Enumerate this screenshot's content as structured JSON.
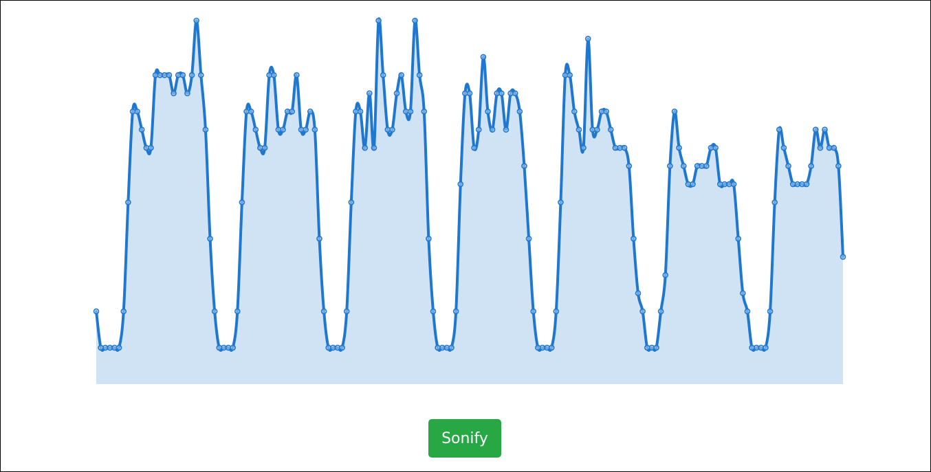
{
  "sonify_button": {
    "label": "Sonify",
    "color": "#28a745"
  },
  "colors": {
    "line": "#1f77cf",
    "fill": "#cfe3f4",
    "point": "#1f77cf"
  },
  "chart_data": {
    "type": "area",
    "title": "",
    "xlabel": "",
    "ylabel": "",
    "axes_visible": false,
    "grid": false,
    "ylim": [
      0,
      20
    ],
    "series": [
      {
        "values": [
          4,
          2,
          2,
          2,
          2,
          2,
          4,
          10,
          15,
          15,
          14,
          13,
          13,
          17,
          17,
          17,
          17,
          16,
          17,
          17,
          16,
          17,
          20,
          17,
          14,
          8,
          4,
          2,
          2,
          2,
          2,
          4,
          10,
          15,
          15,
          14,
          13,
          13,
          17,
          17,
          14,
          14,
          15,
          15,
          17,
          14,
          14,
          15,
          14,
          8,
          4,
          2,
          2,
          2,
          2,
          4,
          10,
          15,
          15,
          13,
          16,
          13,
          20,
          17,
          14,
          14,
          16,
          17,
          15,
          15,
          20,
          17,
          15,
          8,
          4,
          2,
          2,
          2,
          2,
          4,
          11,
          16,
          16,
          13,
          14,
          18,
          15,
          14,
          16,
          16,
          14,
          16,
          16,
          15,
          12,
          8,
          4,
          2,
          2,
          2,
          2,
          4,
          10,
          17,
          17,
          15,
          14,
          13,
          19,
          14,
          14,
          15,
          15,
          14,
          13,
          13,
          13,
          12,
          8,
          5,
          4,
          2,
          2,
          2,
          4,
          6,
          12,
          15,
          13,
          12,
          11,
          11,
          12,
          12,
          12,
          13,
          13,
          11,
          11,
          11,
          11,
          8,
          5,
          4,
          2,
          2,
          2,
          2,
          4,
          10,
          14,
          13,
          12,
          11,
          11,
          11,
          11,
          12,
          14,
          13,
          14,
          13,
          13,
          12,
          7
        ]
      }
    ]
  }
}
